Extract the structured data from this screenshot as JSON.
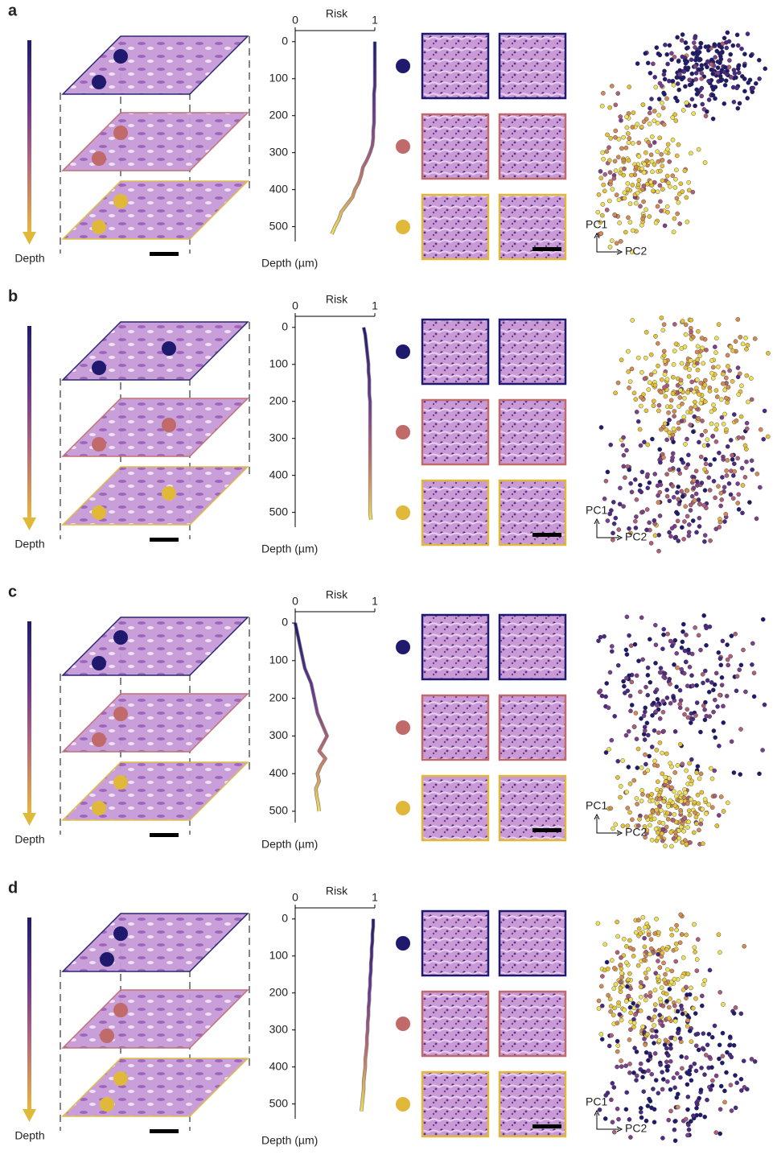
{
  "panels": [
    {
      "label": "a",
      "depth_label": "Depth",
      "pc1": "PC1",
      "pc2": "PC2"
    },
    {
      "label": "b",
      "depth_label": "Depth",
      "pc1": "PC1",
      "pc2": "PC2"
    },
    {
      "label": "c",
      "depth_label": "Depth",
      "pc1": "PC1",
      "pc2": "PC2"
    },
    {
      "label": "d",
      "depth_label": "Depth",
      "pc1": "PC1",
      "pc2": "PC2"
    }
  ],
  "chart_data": [
    {
      "type": "line",
      "title": "Risk",
      "ylabel": "Depth (µm)",
      "xlim": [
        0,
        1
      ],
      "xticks": [
        0,
        1
      ],
      "ylim": [
        -30,
        540
      ],
      "yticks": [
        0,
        100,
        200,
        300,
        400,
        500
      ],
      "depths": [
        0,
        20,
        40,
        60,
        80,
        100,
        120,
        140,
        160,
        180,
        200,
        220,
        240,
        260,
        280,
        300,
        320,
        340,
        360,
        380,
        400,
        420,
        440,
        460,
        480,
        500,
        520
      ],
      "values": [
        1.0,
        1.0,
        1.0,
        1.0,
        1.0,
        1.0,
        1.0,
        0.99,
        0.99,
        0.99,
        0.99,
        0.99,
        0.98,
        0.98,
        0.97,
        0.94,
        0.9,
        0.85,
        0.83,
        0.8,
        0.75,
        0.72,
        0.65,
        0.58,
        0.55,
        0.5,
        0.46
      ]
    },
    {
      "type": "line",
      "title": "Risk",
      "ylabel": "Depth (µm)",
      "xlim": [
        0,
        1
      ],
      "xticks": [
        0,
        1
      ],
      "ylim": [
        -30,
        540
      ],
      "yticks": [
        0,
        100,
        200,
        300,
        400,
        500
      ],
      "depths": [
        0,
        20,
        40,
        60,
        80,
        100,
        120,
        140,
        160,
        180,
        200,
        220,
        240,
        260,
        280,
        300,
        320,
        340,
        360,
        380,
        400,
        420,
        440,
        460,
        480,
        500,
        520
      ],
      "values": [
        0.86,
        0.88,
        0.89,
        0.9,
        0.91,
        0.92,
        0.92,
        0.93,
        0.93,
        0.93,
        0.94,
        0.94,
        0.94,
        0.94,
        0.94,
        0.94,
        0.94,
        0.94,
        0.94,
        0.94,
        0.94,
        0.94,
        0.94,
        0.94,
        0.94,
        0.94,
        0.95
      ]
    },
    {
      "type": "line",
      "title": "Risk",
      "ylabel": "Depth (µm)",
      "xlim": [
        0,
        1
      ],
      "xticks": [
        0,
        1
      ],
      "ylim": [
        -30,
        530
      ],
      "yticks": [
        0,
        100,
        200,
        300,
        400,
        500
      ],
      "depths": [
        0,
        20,
        40,
        60,
        80,
        100,
        120,
        140,
        160,
        180,
        200,
        220,
        240,
        260,
        280,
        300,
        320,
        340,
        360,
        380,
        400,
        420,
        440,
        460,
        480,
        500
      ],
      "values": [
        0.0,
        0.02,
        0.04,
        0.06,
        0.08,
        0.1,
        0.12,
        0.16,
        0.2,
        0.22,
        0.24,
        0.26,
        0.28,
        0.32,
        0.36,
        0.4,
        0.35,
        0.3,
        0.38,
        0.32,
        0.28,
        0.3,
        0.26,
        0.27,
        0.29,
        0.3
      ]
    },
    {
      "type": "line",
      "title": "Risk",
      "ylabel": "Depth (µm)",
      "xlim": [
        0,
        1
      ],
      "xticks": [
        0,
        1
      ],
      "ylim": [
        -30,
        540
      ],
      "yticks": [
        0,
        100,
        200,
        300,
        400,
        500
      ],
      "depths": [
        0,
        20,
        40,
        60,
        80,
        100,
        120,
        140,
        160,
        180,
        200,
        220,
        240,
        260,
        280,
        300,
        320,
        340,
        360,
        380,
        400,
        420,
        440,
        460,
        480,
        500,
        520
      ],
      "values": [
        0.98,
        0.98,
        0.97,
        0.97,
        0.96,
        0.96,
        0.95,
        0.95,
        0.94,
        0.94,
        0.93,
        0.93,
        0.92,
        0.92,
        0.91,
        0.91,
        0.9,
        0.9,
        0.89,
        0.88,
        0.88,
        0.87,
        0.86,
        0.86,
        0.85,
        0.84,
        0.83
      ]
    }
  ]
}
